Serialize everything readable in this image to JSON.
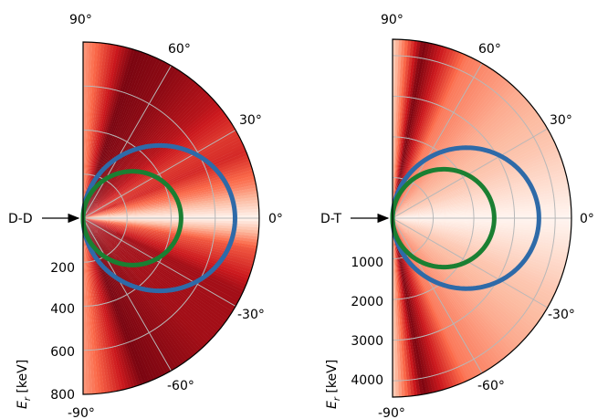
{
  "chart_data": [
    {
      "type": "heatmap",
      "projection": "polar-half",
      "reaction_label": "D-D",
      "angle_unit": "°",
      "angle_ticks": [
        90,
        60,
        30,
        0,
        -30,
        -60,
        -90
      ],
      "angle_tick_labels": [
        "90°",
        "60°",
        "30°",
        "0°",
        "-30°",
        "-60°",
        "-90°"
      ],
      "radial_axis_label": "E_r [keV]",
      "radial_label_main": "E",
      "radial_label_sub": "r",
      "radial_label_unit": " [keV]",
      "radial_range": [
        0,
        800
      ],
      "radial_ticks": [
        200,
        400,
        600,
        800
      ],
      "radial_tick_labels": [
        "200",
        "400",
        "600",
        "800"
      ],
      "radial_gridlines": [
        200,
        400,
        600
      ],
      "angular_gridlines": [
        60,
        30,
        0,
        -30,
        -60
      ],
      "intensity_bands": [
        {
          "angle": 90,
          "radius": 50,
          "width": 20,
          "value": 0.35
        },
        {
          "angle": 73,
          "radius": 280,
          "width": 10,
          "value": 0.95
        },
        {
          "angle": 58,
          "radius": 520,
          "width": 8,
          "value": 0.9
        },
        {
          "angle": 42,
          "radius": 700,
          "width": 6,
          "value": 0.8
        },
        {
          "angle": 30,
          "radius": 790,
          "width": 5,
          "value": 0.65
        },
        {
          "angle": 22,
          "radius": 520,
          "width": 6,
          "value": 0.7
        },
        {
          "angle": 12,
          "radius": 560,
          "width": 4,
          "value": 0.45
        },
        {
          "angle": 0,
          "radius": 0,
          "width": 3,
          "value": 0.0
        },
        {
          "angle": -10,
          "radius": 520,
          "width": 5,
          "value": 0.55
        },
        {
          "angle": -25,
          "radius": 560,
          "width": 7,
          "value": 0.85
        },
        {
          "angle": -45,
          "radius": 620,
          "width": 8,
          "value": 0.85
        },
        {
          "angle": -70,
          "radius": 380,
          "width": 10,
          "value": 0.95
        },
        {
          "angle": -90,
          "radius": 50,
          "width": 20,
          "value": 0.35
        }
      ],
      "series": [
        {
          "color": "#2e6aa8",
          "kinematic_curve": {
            "a": 690,
            "c": 0.18
          }
        },
        {
          "color": "#1a7f32",
          "kinematic_curve": {
            "a": 445,
            "c": 0.18
          }
        }
      ]
    },
    {
      "type": "heatmap",
      "projection": "polar-half",
      "reaction_label": "D-T",
      "angle_unit": "°",
      "angle_ticks": [
        90,
        60,
        30,
        0,
        -30,
        -60,
        -90
      ],
      "angle_tick_labels": [
        "90°",
        "60°",
        "30°",
        "0°",
        "-30°",
        "-60°",
        "-90°"
      ],
      "radial_axis_label": "E_r [keV]",
      "radial_label_main": "E",
      "radial_label_sub": "r",
      "radial_label_unit": " [keV]",
      "radial_range": [
        0,
        4400
      ],
      "radial_ticks": [
        1000,
        2000,
        3000,
        4000
      ],
      "radial_tick_labels": [
        "1000",
        "2000",
        "3000",
        "4000"
      ],
      "radial_gridlines": [
        1000,
        2000,
        3000,
        4000
      ],
      "angular_gridlines": [
        60,
        30,
        0,
        -30,
        -60
      ],
      "intensity_bands": [
        {
          "angle": 90,
          "radius": 200,
          "width": 16,
          "value": 0.15
        },
        {
          "angle": 80,
          "radius": 1500,
          "width": 8,
          "value": 0.95
        },
        {
          "angle": 65,
          "radius": 2400,
          "width": 8,
          "value": 0.45
        },
        {
          "angle": 45,
          "radius": 3400,
          "width": 8,
          "value": 0.3
        },
        {
          "angle": 25,
          "radius": 2600,
          "width": 6,
          "value": 0.2
        },
        {
          "angle": 0,
          "radius": 0,
          "width": 3,
          "value": 0.0
        },
        {
          "angle": -25,
          "radius": 2600,
          "width": 6,
          "value": 0.2
        },
        {
          "angle": -45,
          "radius": 3400,
          "width": 8,
          "value": 0.3
        },
        {
          "angle": -65,
          "radius": 2400,
          "width": 8,
          "value": 0.45
        },
        {
          "angle": -80,
          "radius": 1500,
          "width": 8,
          "value": 0.95
        },
        {
          "angle": -90,
          "radius": 200,
          "width": 16,
          "value": 0.15
        }
      ],
      "series": [
        {
          "color": "#2e6aa8",
          "kinematic_curve": {
            "a": 3600,
            "c": 0.15
          }
        },
        {
          "color": "#1a7f32",
          "kinematic_curve": {
            "a": 2500,
            "c": 0.15
          }
        }
      ]
    }
  ]
}
